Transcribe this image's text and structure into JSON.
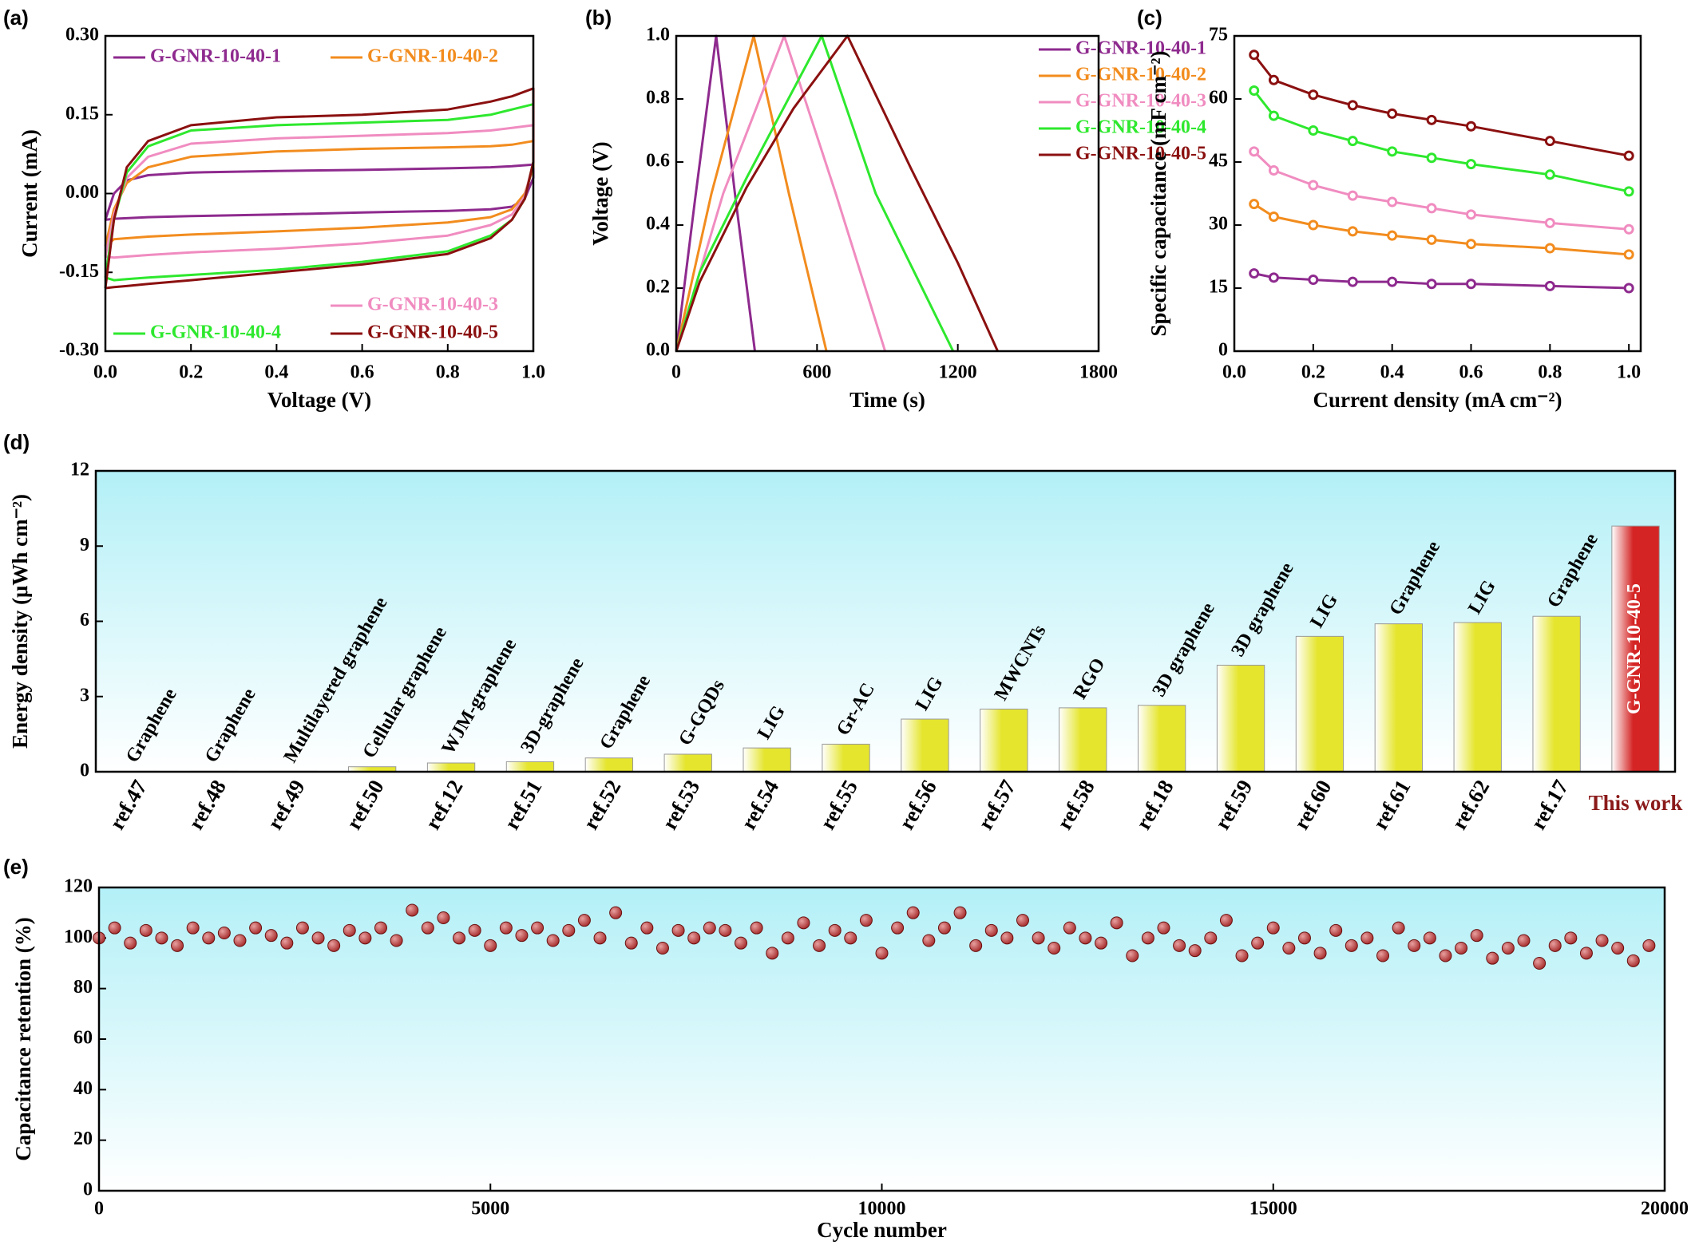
{
  "chart_data": [
    {
      "type": "line",
      "panel_label": "(a)",
      "xlabel": "Voltage (V)",
      "ylabel": "Current (mA)",
      "legend": "split",
      "x": [
        0,
        0.02,
        0.05,
        0.1,
        0.2,
        0.4,
        0.6,
        0.8,
        0.9,
        0.95,
        1,
        1,
        0.98,
        0.95,
        0.9,
        0.8,
        0.6,
        0.4,
        0.2,
        0.1,
        0.05,
        0.02,
        0
      ],
      "series": [
        {
          "name": "G-GNR-10-40-1",
          "color": "#8e2a8e",
          "values": [
            -0.05,
            0,
            0.025,
            0.035,
            0.04,
            0.043,
            0.045,
            0.048,
            0.05,
            0.052,
            0.055,
            0.03,
            -0.01,
            -0.025,
            -0.03,
            -0.033,
            -0.036,
            -0.04,
            -0.043,
            -0.045,
            -0.047,
            -0.048,
            -0.05
          ]
        },
        {
          "name": "G-GNR-10-40-2",
          "color": "#f28c1e",
          "values": [
            -0.1,
            -0.03,
            0.02,
            0.05,
            0.07,
            0.08,
            0.085,
            0.088,
            0.09,
            0.093,
            0.1,
            0.05,
            0,
            -0.03,
            -0.045,
            -0.055,
            -0.065,
            -0.072,
            -0.078,
            -0.082,
            -0.085,
            -0.087,
            -0.1
          ]
        },
        {
          "name": "G-GNR-10-40-3",
          "color": "#f08cc0",
          "values": [
            -0.12,
            -0.04,
            0.03,
            0.07,
            0.095,
            0.105,
            0.11,
            0.115,
            0.12,
            0.125,
            0.13,
            0.06,
            -0.005,
            -0.04,
            -0.06,
            -0.08,
            -0.095,
            -0.105,
            -0.112,
            -0.117,
            -0.12,
            -0.122,
            -0.12
          ]
        },
        {
          "name": "G-GNR-10-40-4",
          "color": "#2ee82e",
          "values": [
            -0.16,
            -0.05,
            0.04,
            0.09,
            0.12,
            0.13,
            0.135,
            0.14,
            0.15,
            0.16,
            0.17,
            0.06,
            -0.01,
            -0.05,
            -0.08,
            -0.11,
            -0.13,
            -0.145,
            -0.155,
            -0.16,
            -0.163,
            -0.165,
            -0.16
          ]
        },
        {
          "name": "G-GNR-10-40-5",
          "color": "#8b1010",
          "values": [
            -0.18,
            -0.05,
            0.05,
            0.1,
            0.13,
            0.145,
            0.15,
            0.16,
            0.175,
            0.185,
            0.2,
            0.06,
            -0.01,
            -0.05,
            -0.085,
            -0.115,
            -0.135,
            -0.15,
            -0.165,
            -0.172,
            -0.176,
            -0.178,
            -0.18
          ]
        }
      ],
      "xlim": [
        0,
        1
      ],
      "xticks": [
        {
          "value": 0,
          "label": "0.0"
        },
        0.2,
        0.4,
        0.6,
        0.8,
        {
          "value": 1,
          "label": "1.0"
        }
      ],
      "ylim": [
        -0.3,
        0.3
      ],
      "yticks": [
        {
          "value": -0.3,
          "label": "-0.30"
        },
        -0.15,
        {
          "value": 0,
          "label": "0.00"
        },
        0.15,
        {
          "value": 0.3,
          "label": "0.30"
        }
      ]
    },
    {
      "type": "line",
      "panel_label": "(b)",
      "xlabel": "Time (s)",
      "ylabel": "Voltage (V)",
      "legend": "upper right",
      "series": [
        {
          "name": "G-GNR-10-40-1",
          "color": "#8e2a8e",
          "x": [
            0,
            80,
            170,
            250,
            335
          ],
          "values": [
            0,
            0.48,
            1,
            0.5,
            0
          ]
        },
        {
          "name": "G-GNR-10-40-2",
          "color": "#f28c1e",
          "x": [
            0,
            150,
            330,
            480,
            640
          ],
          "values": [
            0,
            0.5,
            1,
            0.5,
            0
          ]
        },
        {
          "name": "G-GNR-10-40-3",
          "color": "#f08cc0",
          "x": [
            0,
            200,
            460,
            680,
            890
          ],
          "values": [
            0,
            0.5,
            1,
            0.5,
            0
          ]
        },
        {
          "name": "G-GNR-10-40-4",
          "color": "#2ee82e",
          "x": [
            0,
            100,
            300,
            620,
            850,
            1180
          ],
          "values": [
            0,
            0.25,
            0.55,
            1,
            0.5,
            0
          ]
        },
        {
          "name": "G-GNR-10-40-5",
          "color": "#8b1010",
          "x": [
            0,
            100,
            300,
            500,
            730,
            1000,
            1200,
            1370
          ],
          "values": [
            0,
            0.22,
            0.52,
            0.77,
            1,
            0.58,
            0.28,
            0
          ]
        }
      ],
      "xlim": [
        0,
        1800
      ],
      "xticks": [
        0,
        600,
        1200,
        1800
      ],
      "ylim": [
        0,
        1
      ],
      "yticks": [
        {
          "value": 0,
          "label": "0.0"
        },
        0.2,
        0.4,
        0.6,
        0.8,
        {
          "value": 1,
          "label": "1.0"
        }
      ]
    },
    {
      "type": "line",
      "panel_label": "(c)",
      "xlabel": "Current density (mA cm⁻²)",
      "ylabel": "Specific capacitance (mF cm⁻²)",
      "markers": true,
      "x": [
        0.05,
        0.1,
        0.2,
        0.3,
        0.4,
        0.5,
        0.6,
        0.8,
        1
      ],
      "series": [
        {
          "color": "#8e2a8e",
          "values": [
            18.5,
            17.5,
            17,
            16.5,
            16.5,
            16,
            16,
            15.5,
            15
          ]
        },
        {
          "color": "#f28c1e",
          "values": [
            35,
            32,
            30,
            28.5,
            27.5,
            26.5,
            25.5,
            24.5,
            23
          ]
        },
        {
          "color": "#f08cc0",
          "values": [
            47.5,
            43,
            39.5,
            37,
            35.5,
            34,
            32.5,
            30.5,
            29
          ]
        },
        {
          "color": "#2ee82e",
          "values": [
            62,
            56,
            52.5,
            50,
            47.5,
            46,
            44.5,
            42,
            38
          ]
        },
        {
          "color": "#8b1010",
          "values": [
            70.5,
            64.5,
            61,
            58.5,
            56.5,
            55,
            53.5,
            50,
            46.5
          ]
        }
      ],
      "xlim": [
        0,
        1.03
      ],
      "xticks": [
        {
          "value": 0,
          "label": "0.0"
        },
        0.2,
        0.4,
        0.6,
        0.8,
        {
          "value": 1,
          "label": "1.0"
        }
      ],
      "ylim": [
        0,
        75
      ],
      "yticks": [
        0,
        15,
        30,
        45,
        60,
        75
      ]
    },
    {
      "type": "bar",
      "panel_label": "(d)",
      "ylabel": "Energy density (μWh cm⁻²)",
      "background": "#b3f0f7",
      "highlight_text_color": "#8b1a1a",
      "categories": [
        "ref.47",
        "ref.48",
        "ref.49",
        "ref.50",
        "ref.12",
        "ref.51",
        "ref.52",
        "ref.53",
        "ref.54",
        "ref.55",
        "ref.56",
        "ref.57",
        "ref.58",
        "ref.18",
        "ref.59",
        "ref.60",
        "ref.61",
        "ref.62",
        "ref.17",
        "This work"
      ],
      "values": [
        0.02,
        0.02,
        0.02,
        0.2,
        0.35,
        0.4,
        0.55,
        0.7,
        0.95,
        1.1,
        2.1,
        2.5,
        2.55,
        2.65,
        4.25,
        5.4,
        5.9,
        5.95,
        6.2,
        9.8
      ],
      "annotations": [
        "Graphene",
        "Graphene",
        "Multilayered graphene",
        "Cellular graphene",
        "WJM-graphene",
        "3D-graphene",
        "Graphene",
        "G-GQDs",
        "LIG",
        "Gr-AC",
        "LIG",
        "MWCNTs",
        "RGO",
        "3D graphene",
        "3D graphene",
        "LIG",
        "Graphene",
        "LIG",
        "Graphene",
        "G-GNR-10-40-5"
      ],
      "colors": [
        "#e5e52e",
        "#e5e52e",
        "#e5e52e",
        "#e5e52e",
        "#e5e52e",
        "#e5e52e",
        "#e5e52e",
        "#e5e52e",
        "#e5e52e",
        "#e5e52e",
        "#e5e52e",
        "#e5e52e",
        "#e5e52e",
        "#e5e52e",
        "#e5e52e",
        "#e5e52e",
        "#e5e52e",
        "#e5e52e",
        "#e5e52e",
        "#d42424"
      ],
      "ylim": [
        0,
        12
      ],
      "yticks": [
        0,
        3,
        6,
        9,
        12
      ]
    },
    {
      "type": "scatter",
      "panel_label": "(e)",
      "xlabel": "Cycle number",
      "ylabel": "Capacitance retention (%)",
      "background": "#b3f0f7",
      "color": "#a52a2a",
      "x": [
        0,
        200,
        400,
        600,
        800,
        1000,
        1200,
        1400,
        1600,
        1800,
        2000,
        2200,
        2400,
        2600,
        2800,
        3000,
        3200,
        3400,
        3600,
        3800,
        4000,
        4200,
        4400,
        4600,
        4800,
        5000,
        5200,
        5400,
        5600,
        5800,
        6000,
        6200,
        6400,
        6600,
        6800,
        7000,
        7200,
        7400,
        7600,
        7800,
        8000,
        8200,
        8400,
        8600,
        8800,
        9000,
        9200,
        9400,
        9600,
        9800,
        10000,
        10200,
        10400,
        10600,
        10800,
        11000,
        11200,
        11400,
        11600,
        11800,
        12000,
        12200,
        12400,
        12600,
        12800,
        13000,
        13200,
        13400,
        13600,
        13800,
        14000,
        14200,
        14400,
        14600,
        14800,
        15000,
        15200,
        15400,
        15600,
        15800,
        16000,
        16200,
        16400,
        16600,
        16800,
        17000,
        17200,
        17400,
        17600,
        17800,
        18000,
        18200,
        18400,
        18600,
        18800,
        19000,
        19200,
        19400,
        19600,
        19800
      ],
      "values": [
        100,
        104,
        98,
        103,
        100,
        97,
        104,
        100,
        102,
        99,
        104,
        101,
        98,
        104,
        100,
        97,
        103,
        100,
        104,
        99,
        111,
        104,
        108,
        100,
        103,
        97,
        104,
        101,
        104,
        99,
        103,
        107,
        100,
        110,
        98,
        104,
        96,
        103,
        100,
        104,
        103,
        98,
        104,
        94,
        100,
        106,
        97,
        103,
        100,
        107,
        94,
        104,
        110,
        99,
        104,
        110,
        97,
        103,
        100,
        107,
        100,
        96,
        104,
        100,
        98,
        106,
        93,
        100,
        104,
        97,
        95,
        100,
        107,
        93,
        98,
        104,
        96,
        100,
        94,
        103,
        97,
        100,
        93,
        104,
        97,
        100,
        93,
        96,
        101,
        92,
        96,
        99,
        90,
        97,
        100,
        94,
        99,
        96,
        91,
        97
      ],
      "xlim": [
        0,
        20000
      ],
      "xticks": [
        0,
        5000,
        10000,
        15000,
        20000
      ],
      "ylim": [
        0,
        120
      ],
      "yticks": [
        0,
        20,
        40,
        60,
        80,
        100,
        120
      ]
    }
  ]
}
